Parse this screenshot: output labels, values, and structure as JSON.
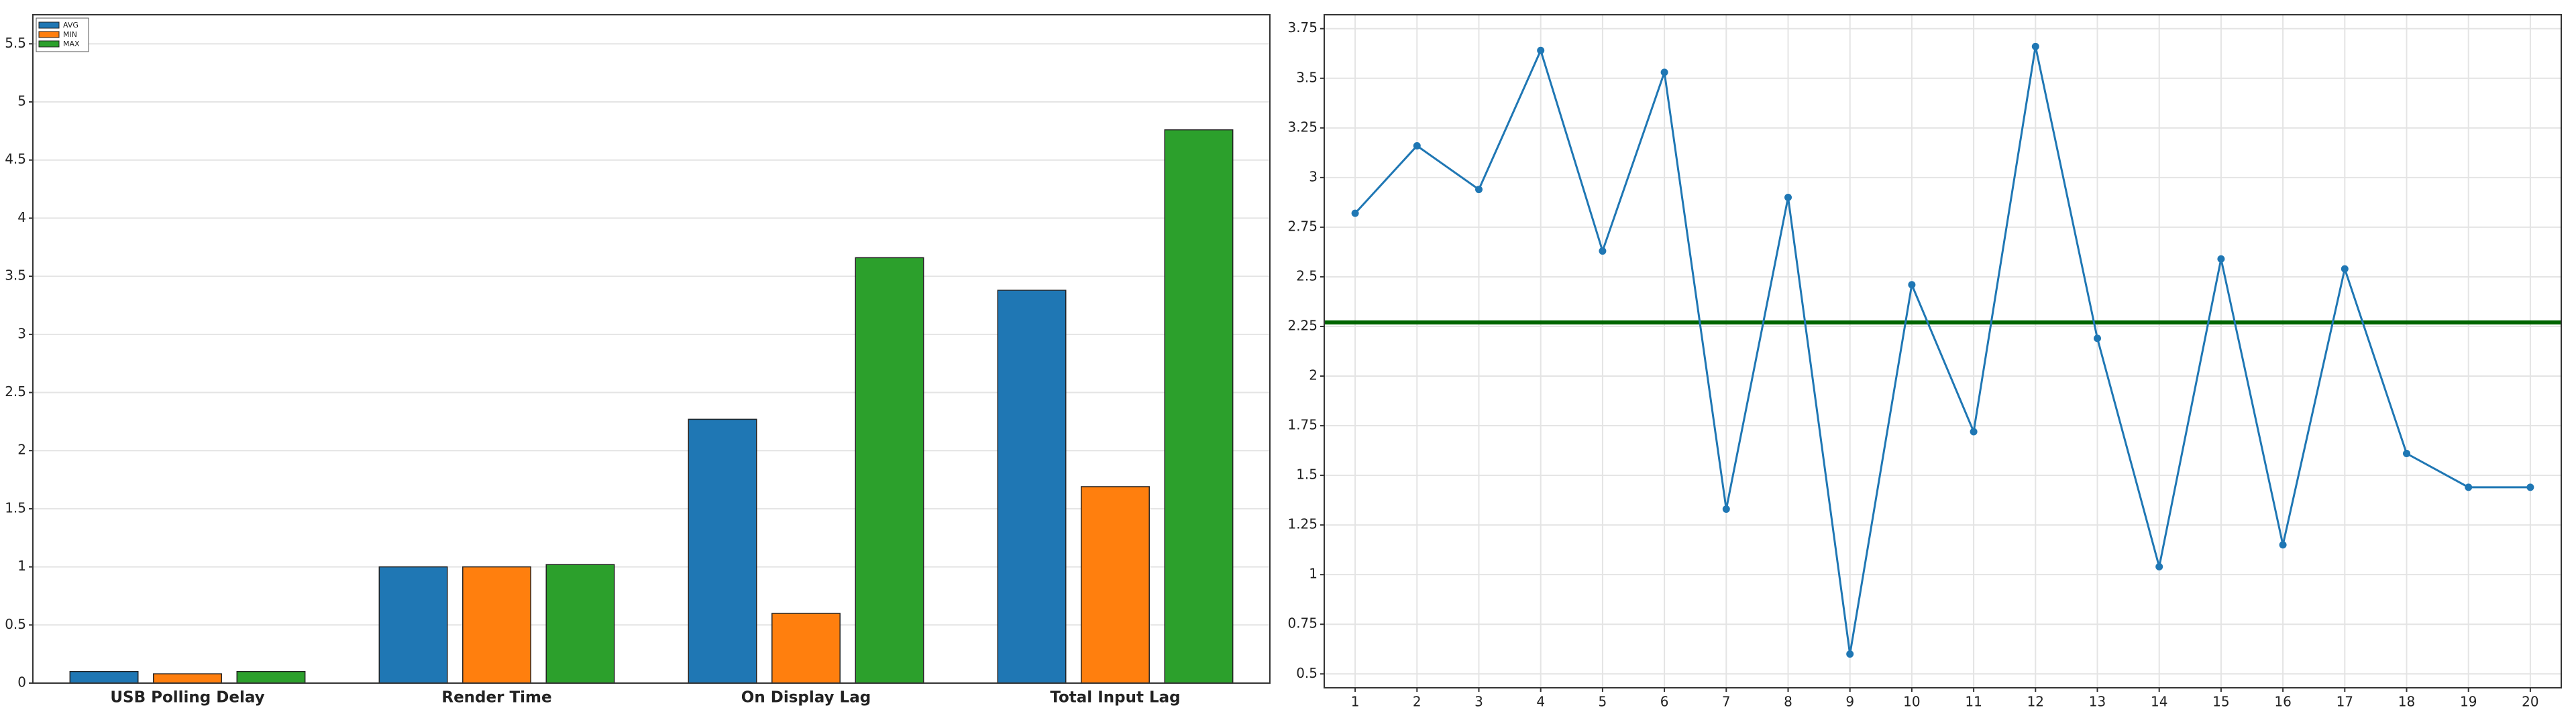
{
  "chart_data": [
    {
      "type": "bar",
      "categories": [
        "USB Polling Delay",
        "Render Time",
        "On Display Lag",
        "Total Input Lag"
      ],
      "series": [
        {
          "name": "AVG",
          "color": "#1f77b4",
          "values": [
            0.1,
            1.0,
            2.27,
            3.38
          ]
        },
        {
          "name": "MIN",
          "color": "#ff7f0e",
          "values": [
            0.08,
            1.0,
            0.6,
            1.69
          ]
        },
        {
          "name": "MAX",
          "color": "#2ca02c",
          "values": [
            0.1,
            1.02,
            3.66,
            4.76
          ]
        }
      ],
      "ylim": [
        0,
        5.75
      ],
      "yticks": [
        0,
        0.5,
        1,
        1.5,
        2,
        2.5,
        3,
        3.5,
        4,
        4.5,
        5,
        5.5
      ],
      "grid": true,
      "legend": "upper left"
    },
    {
      "type": "line",
      "x": [
        1,
        2,
        3,
        4,
        5,
        6,
        7,
        8,
        9,
        10,
        11,
        12,
        13,
        14,
        15,
        16,
        17,
        18,
        19,
        20
      ],
      "series": [
        {
          "color": "#1f77b4",
          "values": [
            2.82,
            3.16,
            2.94,
            3.64,
            2.63,
            3.53,
            1.33,
            2.9,
            0.6,
            2.46,
            1.72,
            3.66,
            2.19,
            1.04,
            2.59,
            1.15,
            2.54,
            1.61,
            1.44,
            1.44
          ]
        }
      ],
      "xlim": [
        0.5,
        20.5
      ],
      "xticks": [
        1,
        2,
        3,
        4,
        5,
        6,
        7,
        8,
        9,
        10,
        11,
        12,
        13,
        14,
        15,
        16,
        17,
        18,
        19,
        20
      ],
      "ylim": [
        0.43,
        3.82
      ],
      "yticks": [
        0.5,
        0.75,
        1,
        1.25,
        1.5,
        1.75,
        2,
        2.25,
        2.5,
        2.75,
        3,
        3.25,
        3.5,
        3.75
      ],
      "grid": true,
      "reference_line": {
        "value": 2.27,
        "color": "#006400"
      }
    }
  ]
}
